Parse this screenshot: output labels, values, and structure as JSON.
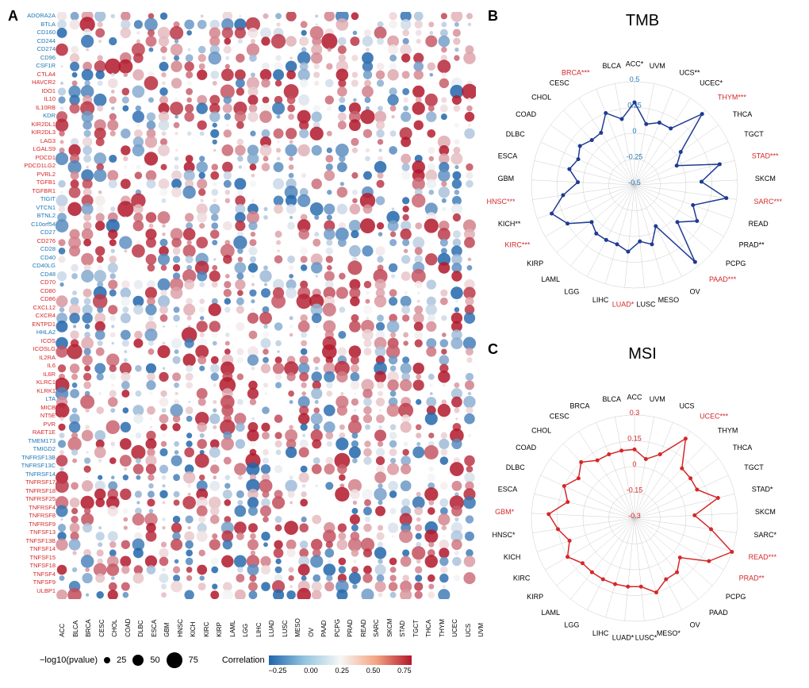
{
  "panelA": {
    "label": "A",
    "genes": [
      {
        "name": "ADORA2A",
        "color": "blue"
      },
      {
        "name": "BTLA",
        "color": "blue"
      },
      {
        "name": "CD160",
        "color": "blue"
      },
      {
        "name": "CD244",
        "color": "blue"
      },
      {
        "name": "CD274",
        "color": "blue"
      },
      {
        "name": "CD96",
        "color": "blue"
      },
      {
        "name": "CSF1R",
        "color": "blue"
      },
      {
        "name": "CTLA4",
        "color": "red"
      },
      {
        "name": "HAVCR2",
        "color": "red"
      },
      {
        "name": "IDO1",
        "color": "red"
      },
      {
        "name": "IL10",
        "color": "red"
      },
      {
        "name": "IL10RB",
        "color": "red"
      },
      {
        "name": "KDR",
        "color": "blue"
      },
      {
        "name": "KIR2DL1",
        "color": "red"
      },
      {
        "name": "KIR2DL3",
        "color": "red"
      },
      {
        "name": "LAG3",
        "color": "red"
      },
      {
        "name": "LGALS9",
        "color": "red"
      },
      {
        "name": "PDCD1",
        "color": "red"
      },
      {
        "name": "PDCD1LG2",
        "color": "red"
      },
      {
        "name": "PVRL2",
        "color": "red"
      },
      {
        "name": "TGFB1",
        "color": "red"
      },
      {
        "name": "TGFBR1",
        "color": "red"
      },
      {
        "name": "TIGIT",
        "color": "blue"
      },
      {
        "name": "VTCN1",
        "color": "blue"
      },
      {
        "name": "BTNL2",
        "color": "blue"
      },
      {
        "name": "C10orf54",
        "color": "blue"
      },
      {
        "name": "CD27",
        "color": "blue"
      },
      {
        "name": "CD276",
        "color": "red"
      },
      {
        "name": "CD28",
        "color": "blue"
      },
      {
        "name": "CD40",
        "color": "blue"
      },
      {
        "name": "CD40LG",
        "color": "blue"
      },
      {
        "name": "CD48",
        "color": "blue"
      },
      {
        "name": "CD70",
        "color": "red"
      },
      {
        "name": "CD80",
        "color": "red"
      },
      {
        "name": "CD86",
        "color": "red"
      },
      {
        "name": "CXCL12",
        "color": "red"
      },
      {
        "name": "CXCR4",
        "color": "red"
      },
      {
        "name": "ENTPD1",
        "color": "red"
      },
      {
        "name": "HHLA2",
        "color": "blue"
      },
      {
        "name": "ICOS",
        "color": "red"
      },
      {
        "name": "ICOSLG",
        "color": "red"
      },
      {
        "name": "IL2RA",
        "color": "red"
      },
      {
        "name": "IL6",
        "color": "red"
      },
      {
        "name": "IL6R",
        "color": "red"
      },
      {
        "name": "KLRC1",
        "color": "red"
      },
      {
        "name": "KLRK1",
        "color": "red"
      },
      {
        "name": "LTA",
        "color": "blue"
      },
      {
        "name": "MICB",
        "color": "red"
      },
      {
        "name": "NT5E",
        "color": "red"
      },
      {
        "name": "PVR",
        "color": "red"
      },
      {
        "name": "RAET1E",
        "color": "red"
      },
      {
        "name": "TMEM173",
        "color": "blue"
      },
      {
        "name": "TMIGD2",
        "color": "blue"
      },
      {
        "name": "TNFRSF13B",
        "color": "blue"
      },
      {
        "name": "TNFRSF13C",
        "color": "blue"
      },
      {
        "name": "TNFRSF14",
        "color": "blue"
      },
      {
        "name": "TNFRSF17",
        "color": "red"
      },
      {
        "name": "TNFRSF18",
        "color": "red"
      },
      {
        "name": "TNFRSF25",
        "color": "red"
      },
      {
        "name": "TNFRSF4",
        "color": "red"
      },
      {
        "name": "TNFRSF8",
        "color": "red"
      },
      {
        "name": "TNFRSF9",
        "color": "red"
      },
      {
        "name": "TNFSF13",
        "color": "red"
      },
      {
        "name": "TNFSF13B",
        "color": "red"
      },
      {
        "name": "TNFSF14",
        "color": "red"
      },
      {
        "name": "TNFSF15",
        "color": "red"
      },
      {
        "name": "TNFSF18",
        "color": "red"
      },
      {
        "name": "TNFSF4",
        "color": "red"
      },
      {
        "name": "TNFSF9",
        "color": "red"
      },
      {
        "name": "ULBP1",
        "color": "red"
      }
    ],
    "cancers": [
      "ACC",
      "BLCA",
      "BRCA",
      "CESC",
      "CHOL",
      "COAD",
      "DLBC",
      "ESCA",
      "GBM",
      "HNSC",
      "KICH",
      "KIRC",
      "KIRP",
      "LAML",
      "LGG",
      "LIHC",
      "LUAD",
      "LUSC",
      "MESO",
      "OV",
      "PAAD",
      "PCPG",
      "PRAD",
      "READ",
      "SARC",
      "SKCM",
      "STAD",
      "TGCT",
      "THCA",
      "THYM",
      "UCEC",
      "UCS",
      "UVM"
    ],
    "legend": {
      "size_label": "−log10(pvalue)",
      "size_values": [
        25,
        50,
        75
      ],
      "color_label": "Correlation",
      "color_ticks": [
        "−0.25",
        "0.00",
        "0.25",
        "0.50",
        "0.75"
      ]
    },
    "bubble_seed": 42,
    "color_neg": "#2166ac",
    "color_pos": "#b2182b",
    "color_mid": "#f7f7f7"
  },
  "panelB": {
    "label": "B",
    "title": "TMB",
    "line_color": "#1f3a93",
    "grid_color": "#cccccc",
    "rings": [
      -0.5,
      -0.25,
      0,
      0.25,
      0.5
    ],
    "tick_labels": [
      "-0.5",
      "-0.25",
      "0",
      "0.25",
      "0.5"
    ],
    "axes": [
      {
        "label": "ACC*",
        "value": 0.3,
        "sig": false
      },
      {
        "label": "UVM",
        "value": 0.1,
        "sig": false
      },
      {
        "label": "UCS**",
        "value": 0.15,
        "sig": false
      },
      {
        "label": "UCEC*",
        "value": 0.15,
        "sig": false
      },
      {
        "label": "THYM***",
        "value": 0.45,
        "sig": true
      },
      {
        "label": "THCA",
        "value": 0.05,
        "sig": false
      },
      {
        "label": "TGCT",
        "value": -0.05,
        "sig": false
      },
      {
        "label": "STAD***",
        "value": 0.35,
        "sig": true
      },
      {
        "label": "SKCM",
        "value": 0.15,
        "sig": false
      },
      {
        "label": "SARC***",
        "value": 0.4,
        "sig": true
      },
      {
        "label": "READ",
        "value": 0.1,
        "sig": false
      },
      {
        "label": "PRAD**",
        "value": 0.2,
        "sig": false
      },
      {
        "label": "PCPG",
        "value": 0.05,
        "sig": false
      },
      {
        "label": "PAAD***",
        "value": 0.45,
        "sig": true
      },
      {
        "label": "OV",
        "value": -0.05,
        "sig": false
      },
      {
        "label": "MESO",
        "value": 0.1,
        "sig": false
      },
      {
        "label": "LUSC",
        "value": 0.05,
        "sig": false
      },
      {
        "label": "LUAD*",
        "value": 0.15,
        "sig": true
      },
      {
        "label": "LIHC",
        "value": 0.1,
        "sig": false
      },
      {
        "label": "LGG",
        "value": 0.1,
        "sig": false
      },
      {
        "label": "LAML",
        "value": 0.1,
        "sig": false
      },
      {
        "label": "KIRP",
        "value": 0.05,
        "sig": false
      },
      {
        "label": "KIRC***",
        "value": 0.25,
        "sig": true
      },
      {
        "label": "KICH**",
        "value": 0.35,
        "sig": false
      },
      {
        "label": "HNSC***",
        "value": 0.2,
        "sig": true
      },
      {
        "label": "GBM",
        "value": 0.05,
        "sig": false
      },
      {
        "label": "ESCA",
        "value": 0.15,
        "sig": false
      },
      {
        "label": "DLBC",
        "value": 0.1,
        "sig": false
      },
      {
        "label": "COAD",
        "value": 0.15,
        "sig": false
      },
      {
        "label": "CHOL",
        "value": 0.1,
        "sig": false
      },
      {
        "label": "CESC",
        "value": 0.1,
        "sig": false
      },
      {
        "label": "BRCA***",
        "value": 0.25,
        "sig": true
      },
      {
        "label": "BLCA",
        "value": 0.15,
        "sig": false
      }
    ]
  },
  "panelC": {
    "label": "C",
    "title": "MSI",
    "line_color": "#d62728",
    "grid_color": "#cccccc",
    "rings": [
      -0.3,
      -0.15,
      0,
      0.15,
      0.3
    ],
    "tick_labels": [
      "-0.3",
      "-0.15",
      "0",
      "0.15",
      "0.3"
    ],
    "axes": [
      {
        "label": "ACC",
        "value": 0.1,
        "sig": false
      },
      {
        "label": "UVM",
        "value": 0.05,
        "sig": false
      },
      {
        "label": "UCS",
        "value": 0.1,
        "sig": false
      },
      {
        "label": "UCEC***",
        "value": 0.25,
        "sig": true
      },
      {
        "label": "THYM",
        "value": 0.1,
        "sig": false
      },
      {
        "label": "THCA",
        "value": 0.1,
        "sig": false
      },
      {
        "label": "TGCT",
        "value": 0.1,
        "sig": false
      },
      {
        "label": "STAD*",
        "value": 0.2,
        "sig": false
      },
      {
        "label": "SKCM",
        "value": 0.05,
        "sig": false
      },
      {
        "label": "SARC*",
        "value": 0.15,
        "sig": false
      },
      {
        "label": "READ***",
        "value": 0.3,
        "sig": true
      },
      {
        "label": "PRAD**",
        "value": 0.2,
        "sig": true
      },
      {
        "label": "PCPG",
        "value": 0.05,
        "sig": false
      },
      {
        "label": "PAAD",
        "value": 0.1,
        "sig": false
      },
      {
        "label": "OV",
        "value": 0.1,
        "sig": false
      },
      {
        "label": "MESO*",
        "value": 0.15,
        "sig": false
      },
      {
        "label": "LUSC*",
        "value": 0.1,
        "sig": false
      },
      {
        "label": "LUAD*",
        "value": 0.1,
        "sig": false
      },
      {
        "label": "LIHC",
        "value": 0.1,
        "sig": false
      },
      {
        "label": "LGG",
        "value": 0.1,
        "sig": false
      },
      {
        "label": "LAML",
        "value": 0.1,
        "sig": false
      },
      {
        "label": "KIRP",
        "value": 0.1,
        "sig": false
      },
      {
        "label": "KIRC",
        "value": 0.15,
        "sig": false
      },
      {
        "label": "KICH",
        "value": 0.1,
        "sig": false
      },
      {
        "label": "HNSC*",
        "value": 0.15,
        "sig": false
      },
      {
        "label": "GBM*",
        "value": 0.2,
        "sig": true
      },
      {
        "label": "ESCA",
        "value": 0.1,
        "sig": false
      },
      {
        "label": "DLBC",
        "value": 0.15,
        "sig": false
      },
      {
        "label": "COAD",
        "value": 0.1,
        "sig": false
      },
      {
        "label": "CHOL",
        "value": 0.15,
        "sig": false
      },
      {
        "label": "CESC",
        "value": 0.1,
        "sig": false
      },
      {
        "label": "BRCA",
        "value": 0.1,
        "sig": false
      },
      {
        "label": "BLCA",
        "value": 0.1,
        "sig": false
      }
    ]
  }
}
